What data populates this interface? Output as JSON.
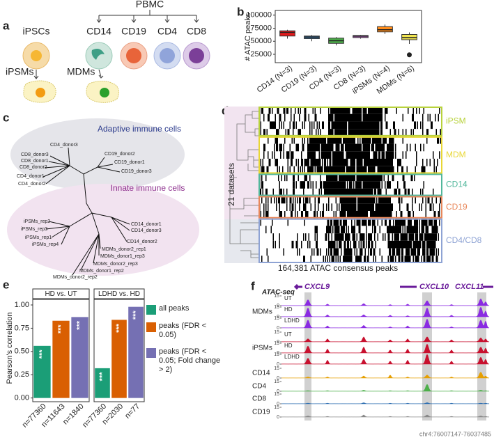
{
  "panel_a": {
    "label": "a",
    "root": "PBMC",
    "cells": [
      "iPSCs",
      "CD14",
      "CD19",
      "CD4",
      "CD8"
    ],
    "derived": [
      "iPSMs",
      "MDMs"
    ]
  },
  "panel_b": {
    "label": "b"
  },
  "panel_c": {
    "label": "c",
    "groups": [
      "Adaptive immune cells",
      "Innate immune cells"
    ],
    "leaves": [
      "CD4_donor3",
      "CD8_donor3",
      "CD8_donor1",
      "CD8_donor2",
      "CD4_donor1",
      "CD4_donor2",
      "CD19_donor2",
      "CD19_donor1",
      "CD19_donor3",
      "CD14_donor1",
      "CD14_donor3",
      "CD14_donor2",
      "iPSMs_rep2",
      "iPSMs_rep3",
      "iPSMs_rep1",
      "iPSMs_rep4",
      "MDMs_donor2_rep1",
      "MDMs_donor1_rep3",
      "MDMs_donor2_rep3",
      "MDMs_donor1_rep2",
      "MDMs_donor2_rep2"
    ]
  },
  "panel_d": {
    "label": "d",
    "blocks": [
      "iPSM",
      "MDM",
      "CD14",
      "CD19",
      "CD4/CD8"
    ],
    "colors": [
      "#b8d23c",
      "#e8d735",
      "#52b79b",
      "#e8875a",
      "#8ea3d4"
    ],
    "ylabel": "21 datasets",
    "xlabel": "164,381 ATAC consensus peaks"
  },
  "panel_e": {
    "label": "e"
  },
  "panel_f": {
    "label": "f",
    "assay": "ATAC-seq",
    "genes": [
      "CXCL9",
      "CXCL10",
      "CXCL11"
    ],
    "coordinates": "chr4:76007147-76037485",
    "groups": [
      {
        "name": "MDMs",
        "color": "#8a2be2",
        "tracks": [
          {
            "label": "UT",
            "yticks": [
              0,
              15
            ]
          },
          {
            "label": "HD",
            "yticks": [
              0,
              15
            ]
          },
          {
            "label": "LDHD",
            "yticks": [
              0,
              15
            ]
          }
        ]
      },
      {
        "name": "iPSMs",
        "color": "#c8102e",
        "tracks": [
          {
            "label": "UT",
            "yticks": [
              0,
              15
            ]
          },
          {
            "label": "HD",
            "yticks": [
              0,
              15
            ]
          },
          {
            "label": "LDHD",
            "yticks": [
              0,
              15
            ]
          }
        ]
      },
      {
        "name": "CD14",
        "color": "#e69f00",
        "tracks": [
          {
            "yticks": [
              0,
              15
            ]
          }
        ]
      },
      {
        "name": "CD4",
        "color": "#4daf4a",
        "tracks": [
          {
            "yticks": [
              0,
              15
            ]
          }
        ]
      },
      {
        "name": "CD8",
        "color": "#2b6cb0",
        "tracks": [
          {
            "yticks": [
              0,
              15
            ]
          }
        ]
      },
      {
        "name": "CD19",
        "color": "#888888",
        "tracks": [
          {
            "yticks": [
              0,
              15
            ]
          }
        ]
      }
    ]
  },
  "chart_data": [
    {
      "type": "box",
      "ylabel": "# ATAC peaks",
      "ylim": [
        9000,
        109000
      ],
      "yticks": [
        25000,
        50000,
        75000,
        100000
      ],
      "categories": [
        "CD14 (N=3)",
        "CD19 (N=3)",
        "CD4 (N=3)",
        "CD8 (N=3)",
        "iPSMs (N=4)",
        "MDMs (N=6)"
      ],
      "colors": [
        "#e41a1c",
        "#377eb8",
        "#4daf4a",
        "#984ea3",
        "#ff8c1a",
        "#f2e650"
      ],
      "boxes": [
        {
          "whislo": 55000,
          "q1": 60000,
          "median": 67000,
          "q3": 70000,
          "whishi": 72000,
          "outliers": []
        },
        {
          "whislo": 50000,
          "q1": 55000,
          "median": 58000,
          "q3": 60000,
          "whishi": 62000,
          "outliers": []
        },
        {
          "whislo": 42000,
          "q1": 46000,
          "median": 51000,
          "q3": 56000,
          "whishi": 58000,
          "outliers": []
        },
        {
          "whislo": 55000,
          "q1": 57000,
          "median": 60000,
          "q3": 61000,
          "whishi": 62000,
          "outliers": []
        },
        {
          "whislo": 64000,
          "q1": 68000,
          "median": 72000,
          "q3": 78000,
          "whishi": 82000,
          "outliers": []
        },
        {
          "whislo": 45000,
          "q1": 53000,
          "median": 57000,
          "q3": 63000,
          "whishi": 67000,
          "outliers": [
            24000
          ]
        }
      ]
    },
    {
      "type": "bar",
      "ylabel": "Pearson's correlation",
      "ylim": [
        -0.04,
        1.06
      ],
      "yticks": [
        {
          "value": 0,
          "label": "0.00"
        },
        {
          "value": 0.25,
          "label": "0.25"
        },
        {
          "value": 0.5,
          "label": "0.50"
        },
        {
          "value": 0.75,
          "label": "0.75"
        },
        {
          "value": 1,
          "label": "1.00"
        }
      ],
      "facets": [
        "HD vs. UT",
        "LDHD vs. HD"
      ],
      "categories": [
        [
          "n=77360",
          "n=11643",
          "n=1840"
        ],
        [
          "n=77360",
          "n=2030",
          "n=77"
        ]
      ],
      "series": [
        {
          "name": "all peaks",
          "color": "#1b9e77",
          "values": [
            0.56,
            0.32
          ],
          "annotations": [
            "***",
            "***"
          ]
        },
        {
          "name": "peaks (FDR < 0.05)",
          "color": "#d95f02",
          "values": [
            0.83,
            0.84
          ],
          "annotations": [
            "***",
            "***"
          ]
        },
        {
          "name": "peaks (FDR < 0.05; Fold change > 2)",
          "color": "#7570b3",
          "values": [
            0.87,
            0.98
          ],
          "annotations": [
            "***",
            "***"
          ]
        }
      ]
    }
  ]
}
